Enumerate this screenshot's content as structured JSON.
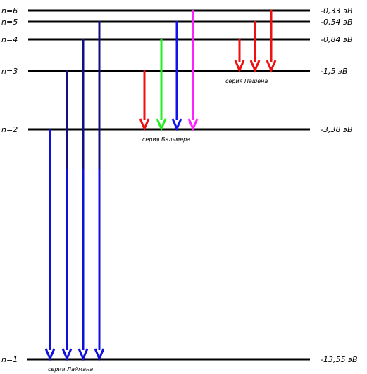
{
  "levels": [
    {
      "n_label": "n=6",
      "energy_label": "-0,33  эВ",
      "energy": -0.33
    },
    {
      "n_label": "n=5",
      "energy_label": "-0,54  эВ",
      "energy": -0.54
    },
    {
      "n_label": "n=4",
      "energy_label": "-0,84  эВ",
      "energy": -0.84
    },
    {
      "n_label": "n=3",
      "energy_label": "-1,5  эВ",
      "energy": -1.5
    },
    {
      "n_label": "n=2",
      "energy_label": "-3,38  эВ",
      "energy": -3.38
    },
    {
      "n_label": "n=1",
      "energy_label": "-13,55  эВ",
      "energy": -13.55
    }
  ],
  "series": [
    {
      "label": "серия Лаймана",
      "target": "n=1",
      "transitions": [
        {
          "from": "n=2",
          "color": "#1010dd"
        },
        {
          "from": "n=3",
          "color": "#1010dd"
        },
        {
          "from": "n=4",
          "color": "#1010dd"
        },
        {
          "from": "n=5",
          "color": "#1010dd"
        }
      ]
    },
    {
      "label": "серия Бальмера",
      "target": "n=2",
      "transitions": [
        {
          "from": "n=3",
          "color": "#ee1111"
        },
        {
          "from": "n=4",
          "color": "#22ee22"
        },
        {
          "from": "n=5",
          "color": "#1111ee"
        },
        {
          "from": "n=6",
          "color": "#ff22ff"
        }
      ]
    },
    {
      "label": "серия Пашена",
      "target": "n=3",
      "transitions": [
        {
          "from": "n=4",
          "color": "#ee1111"
        },
        {
          "from": "n=5",
          "color": "#ee1111"
        },
        {
          "from": "n=6",
          "color": "#ee1111"
        }
      ]
    }
  ]
}
